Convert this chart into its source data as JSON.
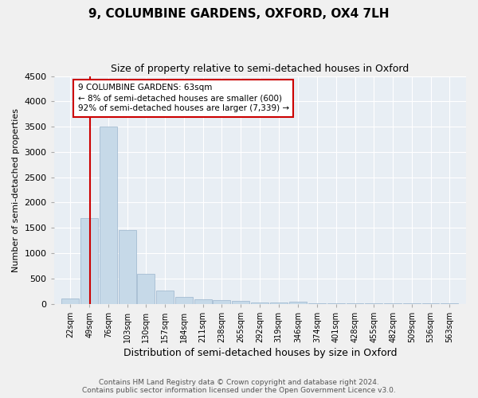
{
  "title_line1": "9, COLUMBINE GARDENS, OXFORD, OX4 7LH",
  "title_line2": "Size of property relative to semi-detached houses in Oxford",
  "xlabel": "Distribution of semi-detached houses by size in Oxford",
  "ylabel": "Number of semi-detached properties",
  "footer_line1": "Contains HM Land Registry data © Crown copyright and database right 2024.",
  "footer_line2": "Contains public sector information licensed under the Open Government Licence v3.0.",
  "property_label": "9 COLUMBINE GARDENS: 63sqm",
  "pct_smaller": 8,
  "count_smaller": 600,
  "pct_larger": 92,
  "count_larger": 7339,
  "bin_labels": [
    "22sqm",
    "49sqm",
    "76sqm",
    "103sqm",
    "130sqm",
    "157sqm",
    "184sqm",
    "211sqm",
    "238sqm",
    "265sqm",
    "292sqm",
    "319sqm",
    "346sqm",
    "374sqm",
    "401sqm",
    "428sqm",
    "455sqm",
    "482sqm",
    "509sqm",
    "536sqm",
    "563sqm"
  ],
  "bin_edges": [
    22,
    49,
    76,
    103,
    130,
    157,
    184,
    211,
    238,
    265,
    292,
    319,
    346,
    374,
    401,
    428,
    455,
    482,
    509,
    536,
    563,
    590
  ],
  "bar_heights": [
    100,
    1700,
    3500,
    1450,
    600,
    260,
    140,
    90,
    70,
    50,
    30,
    20,
    40,
    10,
    5,
    5,
    5,
    5,
    3,
    3,
    3
  ],
  "bar_color": "#c6d9e8",
  "bar_edge_color": "#9ab5cc",
  "vline_color": "#cc0000",
  "vline_x": 63,
  "box_color": "#cc0000",
  "ylim": [
    0,
    4500
  ],
  "yticks": [
    0,
    500,
    1000,
    1500,
    2000,
    2500,
    3000,
    3500,
    4000,
    4500
  ],
  "bg_color": "#e8eef4",
  "fig_color": "#f0f0f0",
  "grid_color": "#ffffff"
}
